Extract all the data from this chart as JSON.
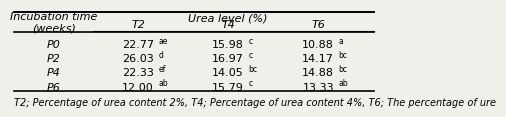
{
  "title_col1": "Incubation time\n(weeks)",
  "title_urea": "Urea level (%)",
  "col_headers": [
    "T2",
    "T4",
    "T6"
  ],
  "row_labels": [
    "P0",
    "P2",
    "P4",
    "P6"
  ],
  "cell_values": [
    [
      "22.77",
      "15.98",
      "10.88"
    ],
    [
      "26.03",
      "16.97",
      "14.17"
    ],
    [
      "22.33",
      "14.05",
      "14.88"
    ],
    [
      "12.00",
      "15.79",
      "13.33"
    ]
  ],
  "superscripts": [
    [
      "ae",
      "c",
      "a"
    ],
    [
      "d",
      "c",
      "bc"
    ],
    [
      "ef",
      "bc",
      "bc"
    ],
    [
      "ab",
      "c",
      "ab"
    ]
  ],
  "footnote": "T2; Percentage of urea content 2%, T4; Percentage of urea content 4%, T6; The percentage of ure",
  "bg_color": "#f0efea",
  "font_size": 8.0,
  "sup_font_size": 5.5,
  "footnote_font_size": 7.0
}
